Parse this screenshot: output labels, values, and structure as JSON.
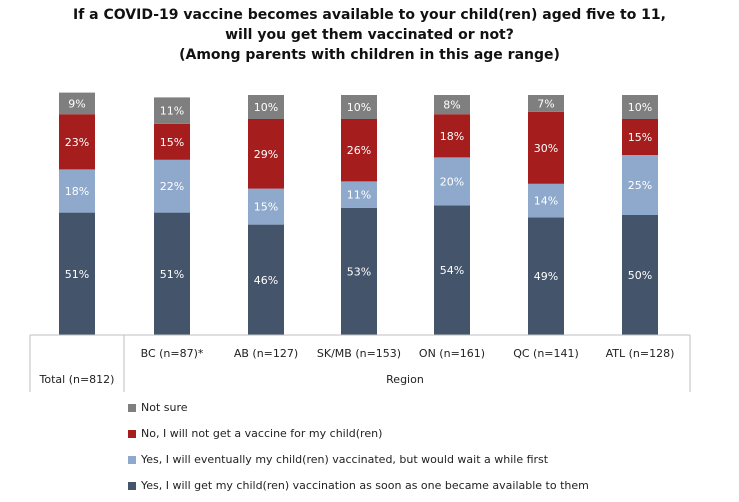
{
  "chart_data": {
    "type": "bar",
    "stacked": true,
    "title_lines": [
      "If a COVID-19 vaccine becomes available to your child(ren) aged five to 11,",
      "will you get them vaccinated or not?",
      "(Among parents with children in this age range)"
    ],
    "categories": [
      "Total (n=812)",
      "BC (n=87)*",
      "AB (n=127)",
      "SK/MB (n=153)",
      "ON (n=161)",
      "QC (n=141)",
      "ATL (n=128)"
    ],
    "group_label": "Region",
    "series": [
      {
        "name": "Yes, I will get my child(ren) vaccination as soon as one became available to them",
        "color": "#44546a",
        "values": [
          51,
          51,
          46,
          53,
          54,
          49,
          50
        ],
        "labels": [
          "51%",
          "51%",
          "46%",
          "53%",
          "54%",
          "49%",
          "50%"
        ]
      },
      {
        "name": "Yes, I will eventually my child(ren) vaccinated, but would wait a while first",
        "color": "#8ea9cb",
        "values": [
          18,
          22,
          15,
          11,
          20,
          14,
          25
        ],
        "labels": [
          "18%",
          "22%",
          "15%",
          "11%",
          "20%",
          "14%",
          "25%"
        ]
      },
      {
        "name": "No, I will not get a vaccine for my child(ren)",
        "color": "#a51d1d",
        "values": [
          23,
          15,
          29,
          26,
          18,
          30,
          15
        ],
        "labels": [
          "23%",
          "15%",
          "29%",
          "26%",
          "18%",
          "30%",
          "15%"
        ]
      },
      {
        "name": "Not sure",
        "color": "#7f7f7f",
        "values": [
          9,
          11,
          10,
          10,
          8,
          7,
          10
        ],
        "labels": [
          "9%",
          "11%",
          "10%",
          "10%",
          "8%",
          "7%",
          "10%"
        ]
      }
    ],
    "ylim": [
      0,
      100
    ]
  }
}
